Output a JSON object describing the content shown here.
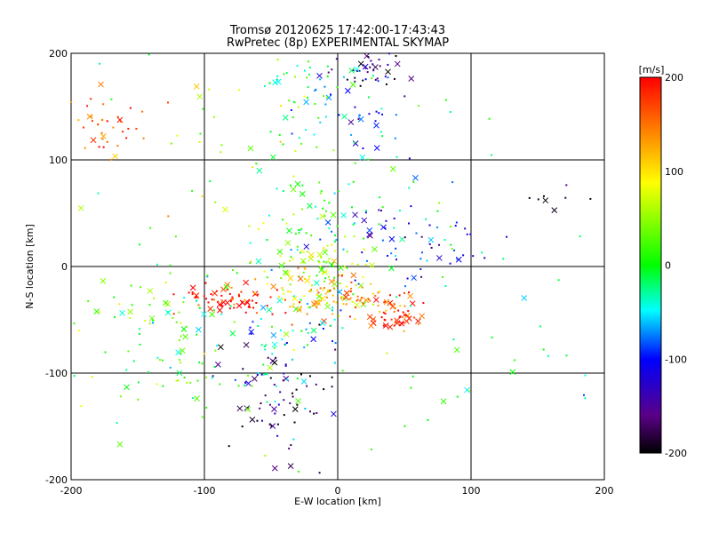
{
  "chart_data": {
    "type": "scatter",
    "title": "Tromsø 20120625 17:42:00-17:43:43",
    "subtitle": "RwPretec (8p) EXPERIMENTAL SKYMAP",
    "xlabel": "E-W location [km]",
    "ylabel": "N-S location [km]",
    "xlim": [
      -200,
      200
    ],
    "ylim": [
      -200,
      200
    ],
    "x_ticks": [
      "-200",
      "-100",
      "0",
      "100",
      "200"
    ],
    "y_ticks": [
      "-200",
      "-100",
      "0",
      "100",
      "200"
    ],
    "grid": true,
    "colorbar": {
      "label": "[m/s]",
      "range": [
        -200,
        200
      ],
      "ticks": [
        "200",
        "100",
        "0",
        "-100",
        "-200"
      ],
      "colormap": "rainbow: black-purple-blue-cyan-green-yellow-orange-red"
    },
    "clusters": [
      {
        "cx": -10,
        "cy": 0,
        "sx": 22,
        "sy": 22,
        "n": 90,
        "v": 60
      },
      {
        "cx": -85,
        "cy": -30,
        "sx": 15,
        "sy": 6,
        "n": 65,
        "v": 200
      },
      {
        "cx": 45,
        "cy": -45,
        "sx": 10,
        "sy": 8,
        "n": 45,
        "v": 190
      },
      {
        "cx": 15,
        "cy": -35,
        "sx": 22,
        "sy": 10,
        "n": 55,
        "v": 150
      },
      {
        "cx": -20,
        "cy": -30,
        "sx": 22,
        "sy": 12,
        "n": 60,
        "v": 120
      },
      {
        "cx": 25,
        "cy": 185,
        "sx": 15,
        "sy": 10,
        "n": 40,
        "v": -170
      },
      {
        "cx": 20,
        "cy": 145,
        "sx": 15,
        "sy": 25,
        "n": 35,
        "v": -90
      },
      {
        "cx": -20,
        "cy": 160,
        "sx": 28,
        "sy": 25,
        "n": 45,
        "v": -20
      },
      {
        "cx": -170,
        "cy": 135,
        "sx": 18,
        "sy": 18,
        "n": 40,
        "v": 170
      },
      {
        "cx": -50,
        "cy": -120,
        "sx": 20,
        "sy": 30,
        "n": 70,
        "v": -180
      },
      {
        "cx": -110,
        "cy": -80,
        "sx": 35,
        "sy": 40,
        "n": 70,
        "v": 20
      },
      {
        "cx": 40,
        "cy": 30,
        "sx": 30,
        "sy": 25,
        "n": 55,
        "v": -80
      },
      {
        "cx": -20,
        "cy": 50,
        "sx": 25,
        "sy": 30,
        "n": 60,
        "v": 20
      },
      {
        "cx": -40,
        "cy": -60,
        "sx": 25,
        "sy": 30,
        "n": 60,
        "v": -60
      },
      {
        "cx": 80,
        "cy": 20,
        "sx": 20,
        "sy": 10,
        "n": 20,
        "v": -110
      },
      {
        "cx": 160,
        "cy": 60,
        "sx": 15,
        "sy": 8,
        "n": 8,
        "v": -170
      },
      {
        "cx": 0,
        "cy": 0,
        "sx": 120,
        "sy": 120,
        "n": 110,
        "v": 0
      },
      {
        "cx": -150,
        "cy": -60,
        "sx": 30,
        "sy": 50,
        "n": 40,
        "v": 30
      },
      {
        "cx": -70,
        "cy": 120,
        "sx": 40,
        "sy": 40,
        "n": 25,
        "v": 80
      }
    ],
    "seed": 73
  }
}
